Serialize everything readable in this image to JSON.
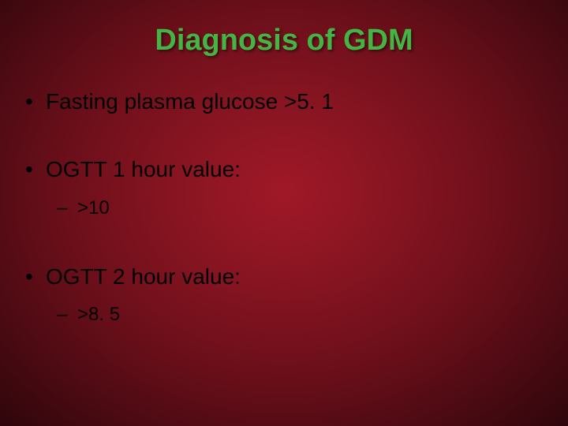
{
  "slide": {
    "title": "Diagnosis of GDM",
    "title_color": "#44b544",
    "text_color": "#000000",
    "background": {
      "type": "radial-gradient",
      "center_color": "#a01828",
      "mid_color": "#6b0f1a",
      "edge_color": "#2e060b"
    },
    "bullets": [
      {
        "text": "Fasting plasma glucose >5. 1",
        "sub": []
      },
      {
        "text": "OGTT 1 hour value:",
        "sub": [
          {
            "text": ">10"
          }
        ]
      },
      {
        "text": "OGTT 2 hour value:",
        "sub": [
          {
            "text": " >8. 5"
          }
        ]
      }
    ],
    "title_fontsize": 38,
    "bullet_fontsize": 28,
    "sub_bullet_fontsize": 24
  }
}
